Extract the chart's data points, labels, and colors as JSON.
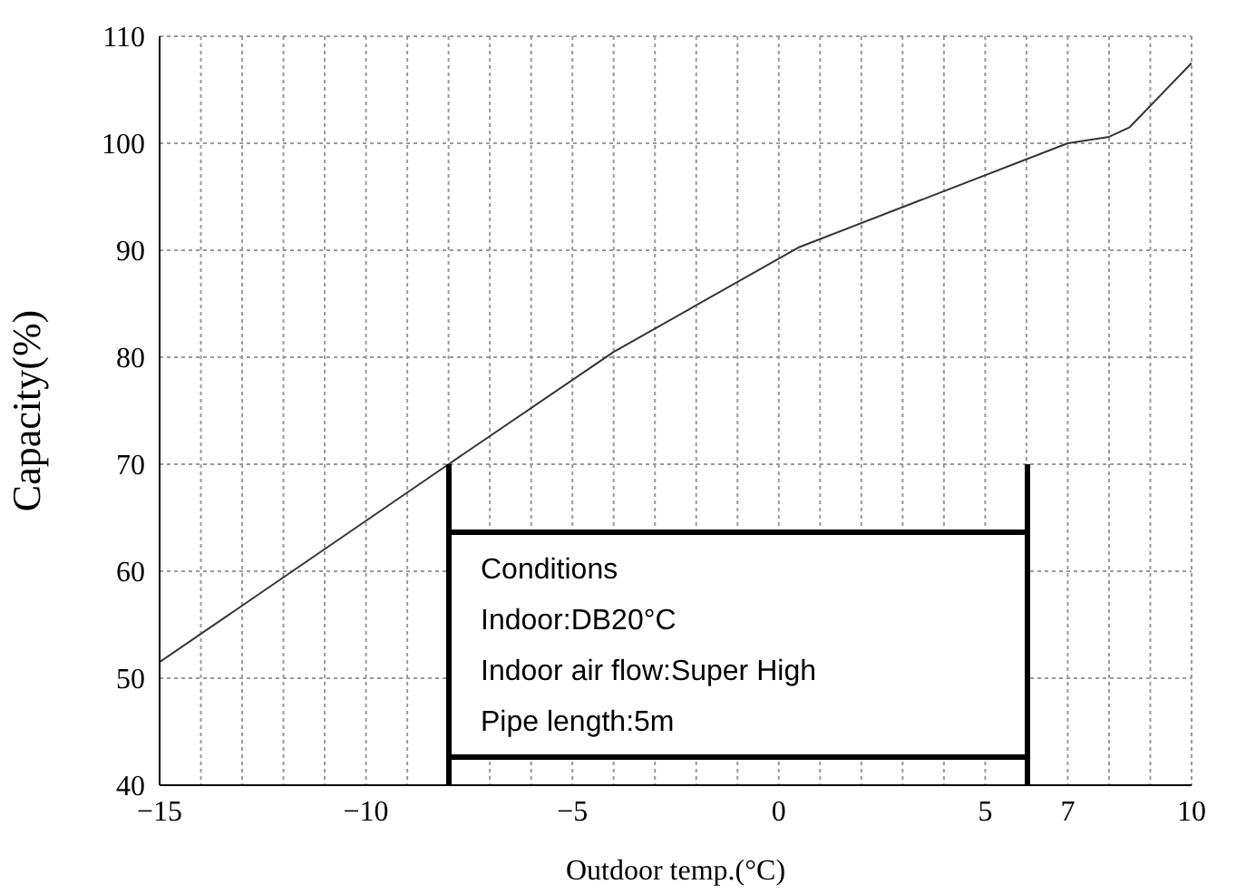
{
  "chart_data": {
    "type": "line",
    "xlabel": "Outdoor temp.(°C)",
    "ylabel": "Capacity(%)",
    "x": [
      -15,
      -8,
      -4,
      0.5,
      7,
      8,
      8.5,
      9,
      10
    ],
    "series": [
      {
        "color": "#333333",
        "values": [
          51.5,
          70,
          80.5,
          90.3,
          100,
          100.6,
          101.5,
          103.5,
          107.5
        ]
      }
    ],
    "xlim": [
      -15,
      10
    ],
    "xticks": [
      -15,
      {
        "value": -14,
        "label": null
      },
      {
        "value": -13,
        "label": null
      },
      {
        "value": -12,
        "label": null
      },
      {
        "value": -11,
        "label": null
      },
      -10,
      {
        "value": -9,
        "label": null
      },
      {
        "value": -8,
        "label": null
      },
      {
        "value": -7,
        "label": null
      },
      {
        "value": -6,
        "label": null
      },
      -5,
      {
        "value": -4,
        "label": null
      },
      {
        "value": -3,
        "label": null
      },
      {
        "value": -2,
        "label": null
      },
      {
        "value": -1,
        "label": null
      },
      0,
      {
        "value": 1,
        "label": null
      },
      {
        "value": 2,
        "label": null
      },
      {
        "value": 3,
        "label": null
      },
      {
        "value": 4,
        "label": null
      },
      5,
      {
        "value": 6,
        "label": null
      },
      7,
      {
        "value": 8,
        "label": null
      },
      {
        "value": 9,
        "label": null
      },
      10
    ],
    "ylim": [
      40,
      110
    ],
    "yticks": [
      40,
      50,
      60,
      70,
      80,
      90,
      100,
      110
    ],
    "grid": true,
    "annotations": [
      "Conditions",
      "Indoor:DB20°C",
      "Indoor air flow:Super High",
      "Pipe length:5m"
    ]
  }
}
